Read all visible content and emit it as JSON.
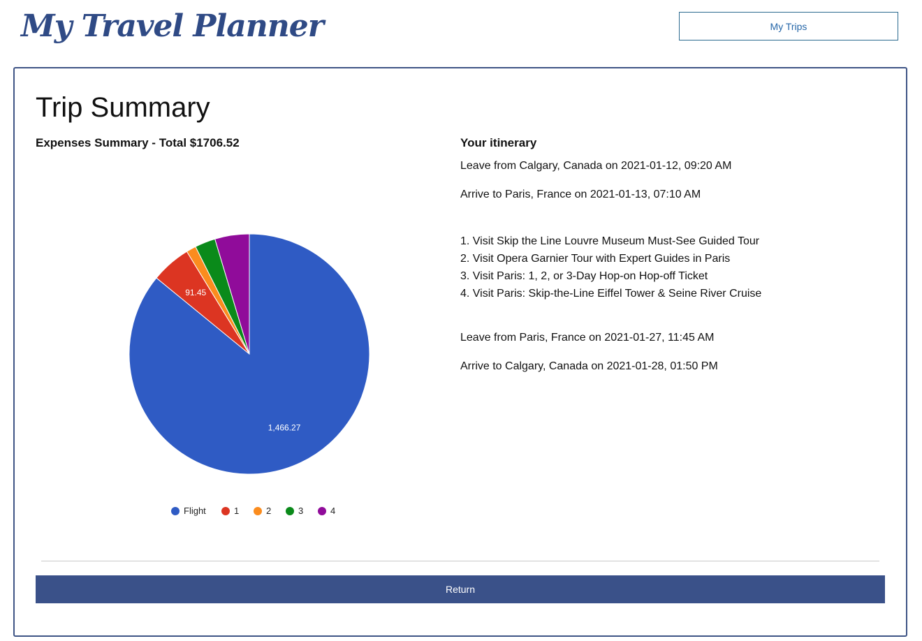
{
  "header": {
    "logo_text": "My Travel Planner",
    "my_trips_label": "My Trips"
  },
  "summary": {
    "title": "Trip Summary",
    "expenses_title": "Expenses Summary - Total $1706.52"
  },
  "chart_data": {
    "type": "pie",
    "title": "",
    "categories": [
      "Flight",
      "1",
      "2",
      "3",
      "4"
    ],
    "values": [
      1466.27,
      91.45,
      22.5,
      47.3,
      79.0
    ],
    "colors": [
      "#2f5bc4",
      "#dc3522",
      "#fb8c1e",
      "#0a8a1a",
      "#900c9a"
    ],
    "data_labels": [
      "1,466.27",
      "91.45",
      "",
      "",
      ""
    ],
    "legend_position": "bottom"
  },
  "itinerary": {
    "title": "Your itinerary",
    "outbound_leave": "Leave from Calgary, Canada on 2021-01-12, 09:20 AM",
    "outbound_arrive": "Arrive to Paris, France on 2021-01-13, 07:10 AM",
    "activities": [
      "1. Visit Skip the Line Louvre Museum Must-See Guided Tour",
      "2. Visit Opera Garnier Tour with Expert Guides in Paris",
      "3. Visit Paris: 1, 2, or 3-Day Hop-on Hop-off Ticket",
      "4. Visit Paris: Skip-the-Line Eiffel Tower & Seine River Cruise"
    ],
    "return_leave": "Leave from Paris, France on 2021-01-27, 11:45 AM",
    "return_arrive": "Arrive to Calgary, Canada on 2021-01-28, 01:50 PM"
  },
  "footer": {
    "return_label": "Return"
  }
}
